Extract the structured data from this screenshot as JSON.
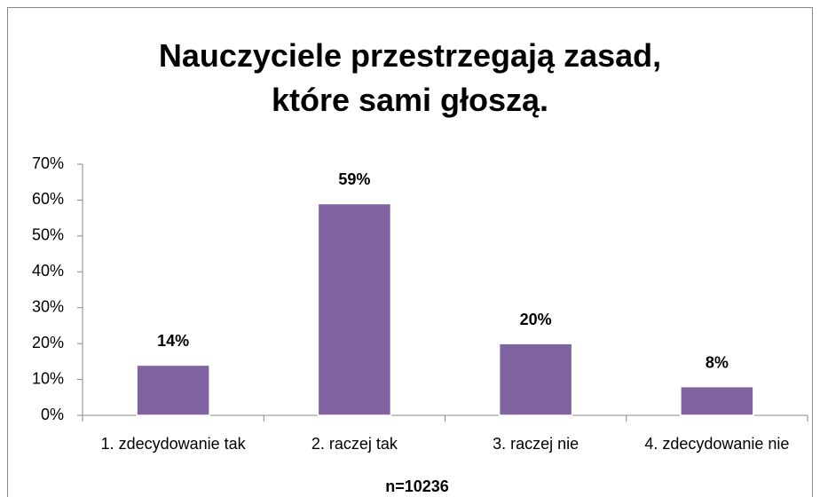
{
  "chart_data": {
    "type": "bar",
    "title": "Nauczyciele przestrzegają zasad, które sami głoszą.",
    "categories": [
      "1. zdecydowanie tak",
      "2. raczej tak",
      "3. raczej nie",
      "4. zdecydowanie nie"
    ],
    "values": [
      14,
      59,
      20,
      8
    ],
    "value_labels": [
      "14%",
      "59%",
      "20%",
      "8%"
    ],
    "color": "#8064a2",
    "ylim": [
      0,
      70
    ],
    "yticks": [
      {
        "value": 0,
        "label": "0%"
      },
      {
        "value": 10,
        "label": "10%"
      },
      {
        "value": 20,
        "label": "20%"
      },
      {
        "value": 30,
        "label": "30%"
      },
      {
        "value": 40,
        "label": "40%"
      },
      {
        "value": 50,
        "label": "50%"
      },
      {
        "value": 60,
        "label": "60%"
      },
      {
        "value": 70,
        "label": "70%"
      }
    ],
    "annotation": "n=10236",
    "grid": false
  }
}
